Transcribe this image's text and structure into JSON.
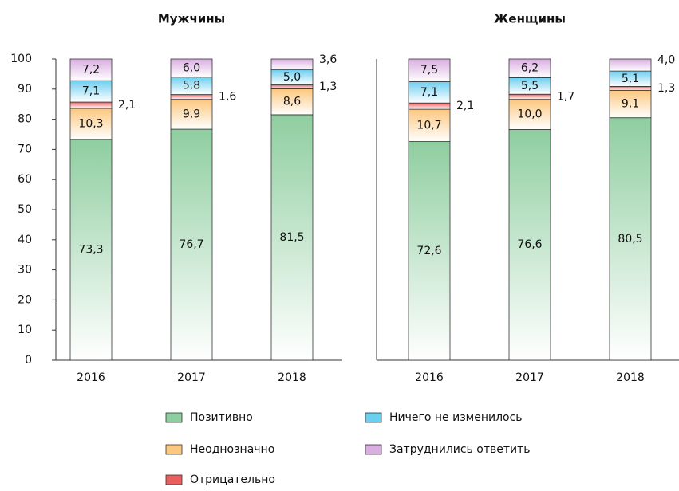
{
  "chart_data": [
    {
      "type": "bar",
      "stacked": true,
      "title": "Мужчины",
      "categories": [
        "2016",
        "2017",
        "2018"
      ],
      "series": [
        {
          "name": "Позитивно",
          "color": "#8fcea0",
          "values": [
            73.3,
            76.7,
            81.5
          ],
          "value_labels": [
            "73,3",
            "76,7",
            "81,5"
          ]
        },
        {
          "name": "Неоднозначно",
          "color": "#fcc77e",
          "values": [
            10.3,
            9.9,
            8.6
          ],
          "value_labels": [
            "10,3",
            "9,9",
            "8,6"
          ]
        },
        {
          "name": "Отрицательно",
          "color": "#e86060",
          "values": [
            2.1,
            1.6,
            1.3
          ],
          "value_labels": [
            "2,1",
            "1,6",
            "1,3"
          ]
        },
        {
          "name": "Ничего не изменилось",
          "color": "#6dcff0",
          "values": [
            7.1,
            5.8,
            5.0
          ],
          "value_labels": [
            "7,1",
            "5,8",
            "5,0"
          ]
        },
        {
          "name": "Затруднились ответить",
          "color": "#d9aee0",
          "values": [
            7.2,
            6.0,
            3.6
          ],
          "value_labels": [
            "7,2",
            "6,0",
            "3,6"
          ]
        }
      ],
      "ylim": [
        0,
        100
      ],
      "yticks": [
        0,
        10,
        20,
        30,
        40,
        50,
        60,
        70,
        80,
        90,
        100
      ]
    },
    {
      "type": "bar",
      "stacked": true,
      "title": "Женщины",
      "categories": [
        "2016",
        "2017",
        "2018"
      ],
      "series": [
        {
          "name": "Позитивно",
          "color": "#8fcea0",
          "values": [
            72.6,
            76.6,
            80.5
          ],
          "value_labels": [
            "72,6",
            "76,6",
            "80,5"
          ]
        },
        {
          "name": "Неоднозначно",
          "color": "#fcc77e",
          "values": [
            10.7,
            10.0,
            9.1
          ],
          "value_labels": [
            "10,7",
            "10,0",
            "9,1"
          ]
        },
        {
          "name": "Отрицательно",
          "color": "#e86060",
          "values": [
            2.1,
            1.7,
            1.3
          ],
          "value_labels": [
            "2,1",
            "1,7",
            "1,3"
          ]
        },
        {
          "name": "Ничего не изменилось",
          "color": "#6dcff0",
          "values": [
            7.1,
            5.5,
            5.1
          ],
          "value_labels": [
            "7,1",
            "5,5",
            "5,1"
          ]
        },
        {
          "name": "Затруднились ответить",
          "color": "#d9aee0",
          "values": [
            7.5,
            6.2,
            4.0
          ],
          "value_labels": [
            "7,5",
            "6,2",
            "4,0"
          ]
        }
      ],
      "ylim": [
        0,
        100
      ]
    }
  ]
}
